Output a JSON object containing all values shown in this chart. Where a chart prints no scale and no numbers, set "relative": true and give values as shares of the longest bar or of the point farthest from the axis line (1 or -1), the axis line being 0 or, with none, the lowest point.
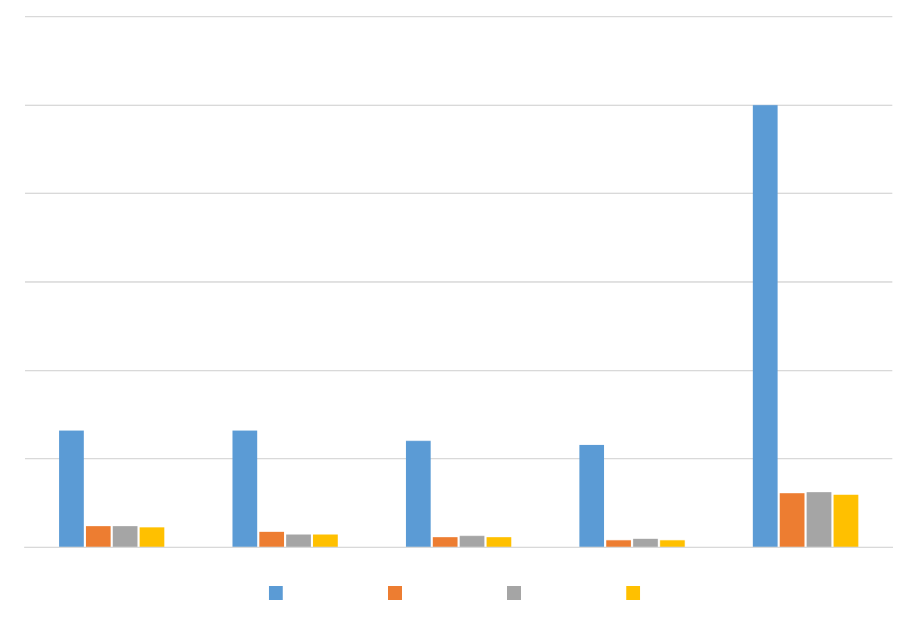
{
  "chart_data": {
    "type": "bar",
    "relative": true,
    "categories": [
      null,
      null,
      null,
      null,
      null
    ],
    "series": [
      {
        "color": "#5b9bd5",
        "values": [
          0.264,
          0.264,
          0.241,
          0.232,
          1
        ]
      },
      {
        "color": "#ed7d31",
        "values": [
          0.048,
          0.035,
          0.023,
          0.016,
          0.122
        ]
      },
      {
        "color": "#a5a5a5",
        "values": [
          0.048,
          0.029,
          0.026,
          0.019,
          0.125
        ]
      },
      {
        "color": "#ffc000",
        "values": [
          0.045,
          0.029,
          0.023,
          0.016,
          0.119
        ]
      }
    ],
    "grid": "y"
  }
}
